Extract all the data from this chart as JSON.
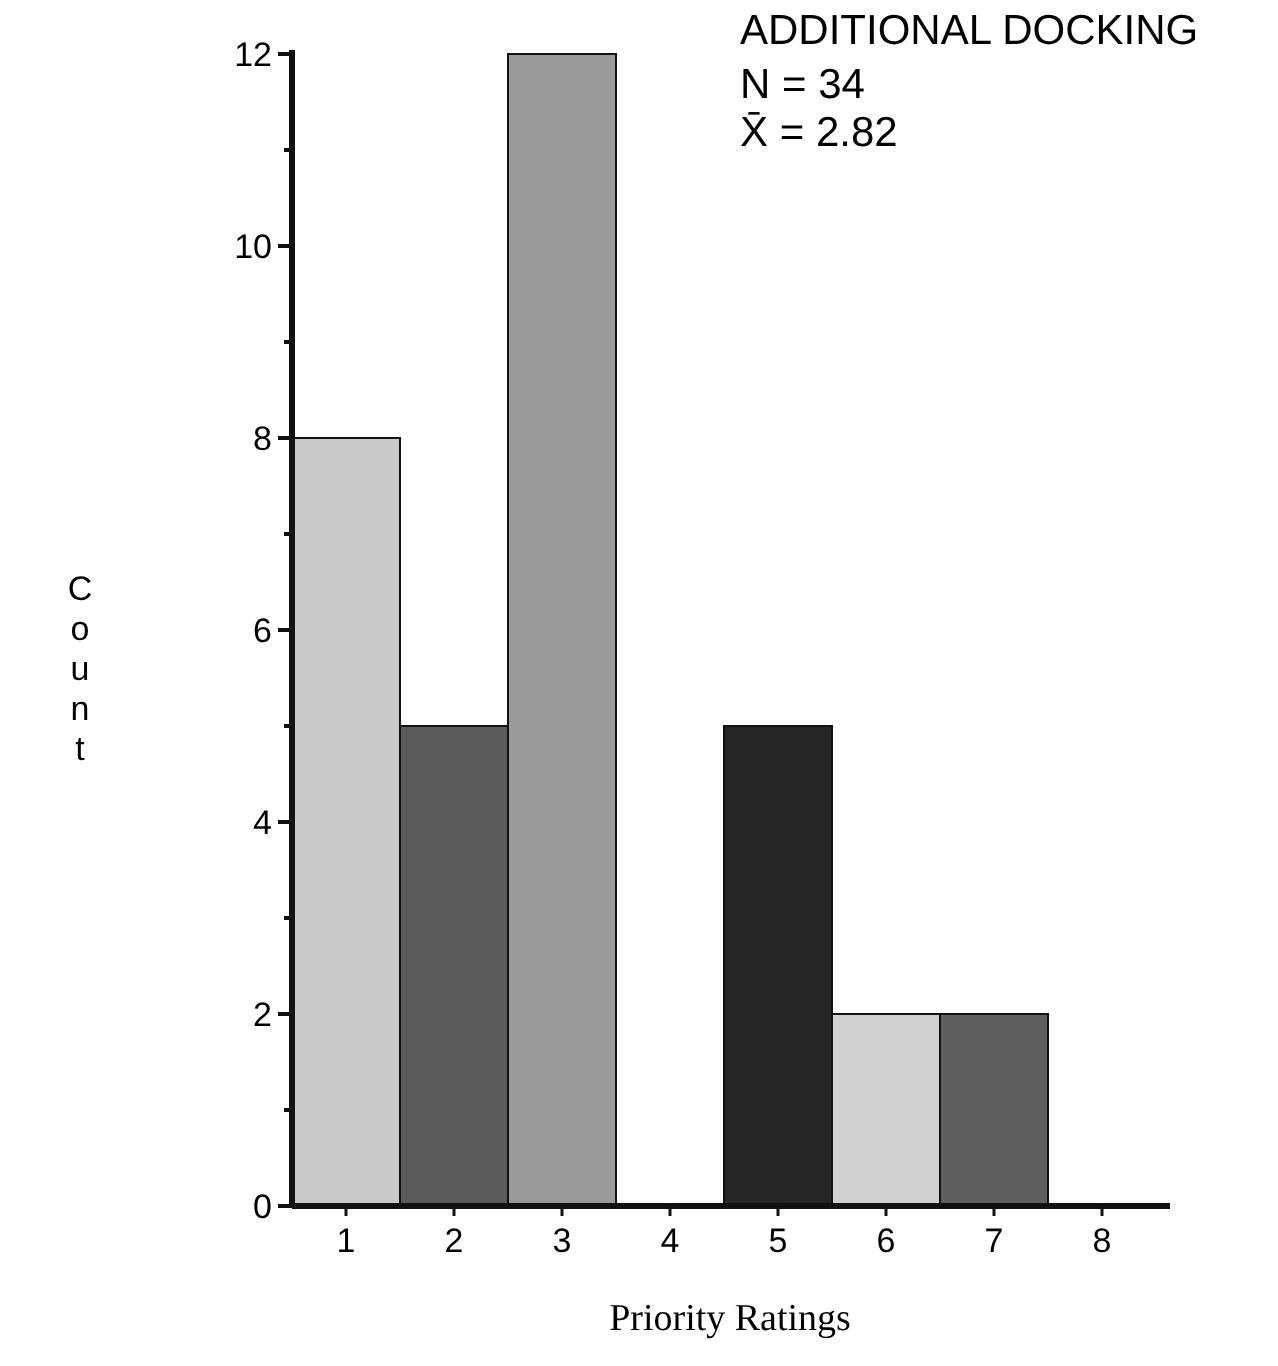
{
  "chart_data": {
    "type": "bar",
    "title": "ADDITIONAL DOCKING",
    "annotations": [
      "N = 34",
      "X̄  = 2.82"
    ],
    "xlabel": "Priority Ratings",
    "ylabel": "Count",
    "categories": [
      "1",
      "2",
      "3",
      "4",
      "5",
      "6",
      "7",
      "8"
    ],
    "values": [
      8,
      5,
      12,
      0,
      5,
      2,
      2,
      0
    ],
    "colors": [
      "#c9c9c9",
      "#5a5a5a",
      "#9a9a9a",
      "#808080",
      "#262626",
      "#d0d0d0",
      "#5f5f5f",
      "#808080"
    ],
    "ylim": [
      0,
      12
    ],
    "yticks": [
      0,
      {
        "value": 1,
        "label": null
      },
      2,
      {
        "value": 3,
        "label": null
      },
      4,
      {
        "value": 5,
        "label": null
      },
      6,
      {
        "value": 7,
        "label": null
      },
      8,
      {
        "value": 9,
        "label": null
      },
      10,
      {
        "value": 11,
        "label": null
      },
      12
    ],
    "grid": false
  }
}
